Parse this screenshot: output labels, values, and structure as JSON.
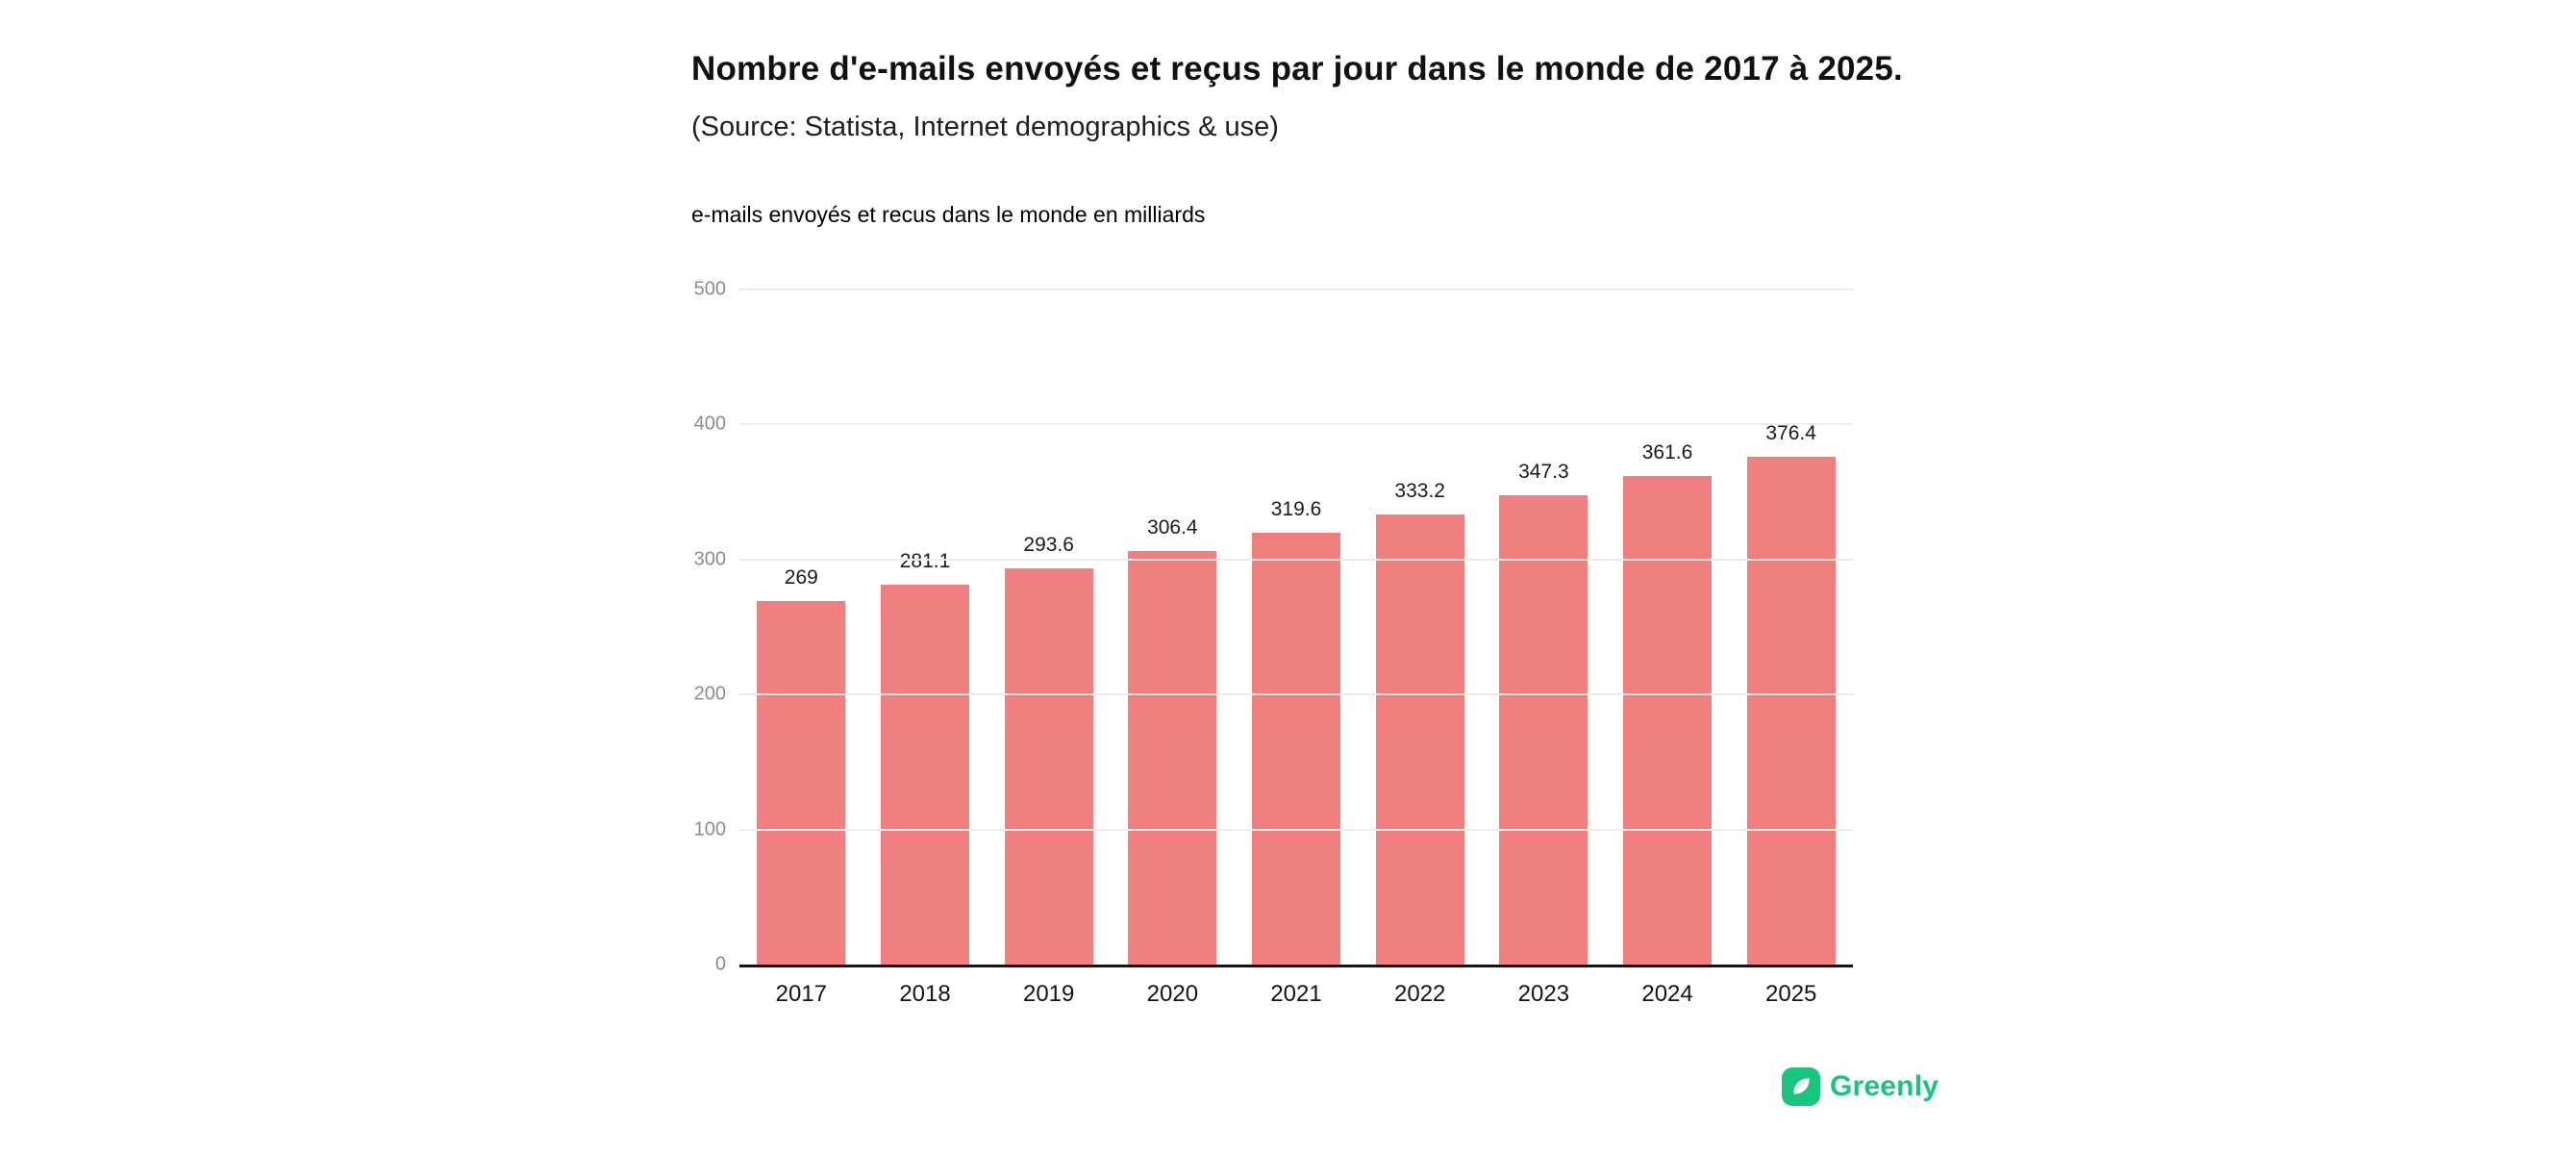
{
  "header": {
    "title": "Nombre d'e-mails envoyés et reçus par jour dans le monde de 2017 à 2025.",
    "subtitle": "(Source: Statista, Internet demographics & use)"
  },
  "chart_data": {
    "type": "bar",
    "title": "Nombre d'e-mails envoyés et reçus par jour dans le monde de 2017 à 2025.",
    "subtitle": "(Source: Statista, Internet demographics & use)",
    "axis_label": "e-mails envoyés et recus dans le monde en milliards",
    "categories": [
      "2017",
      "2018",
      "2019",
      "2020",
      "2021",
      "2022",
      "2023",
      "2024",
      "2025"
    ],
    "values": [
      269,
      281.1,
      293.6,
      306.4,
      319.6,
      333.2,
      347.3,
      361.6,
      376.4
    ],
    "value_labels": [
      "269",
      "281.1",
      "293.6",
      "306.4",
      "319.6",
      "333.2",
      "347.3",
      "361.6",
      "376.4"
    ],
    "ylim": [
      0,
      500
    ],
    "yticks": [
      0,
      100,
      200,
      300,
      400,
      500
    ],
    "bar_color": "#F08080",
    "grid": true,
    "legend": "none",
    "xlabel": "",
    "ylabel": "e-mails envoyés et recus dans le monde en milliards"
  },
  "branding": {
    "logo_text": "Greenly",
    "logo_color": "#1BC47D",
    "logo_icon": "greenly-leaf-icon"
  }
}
